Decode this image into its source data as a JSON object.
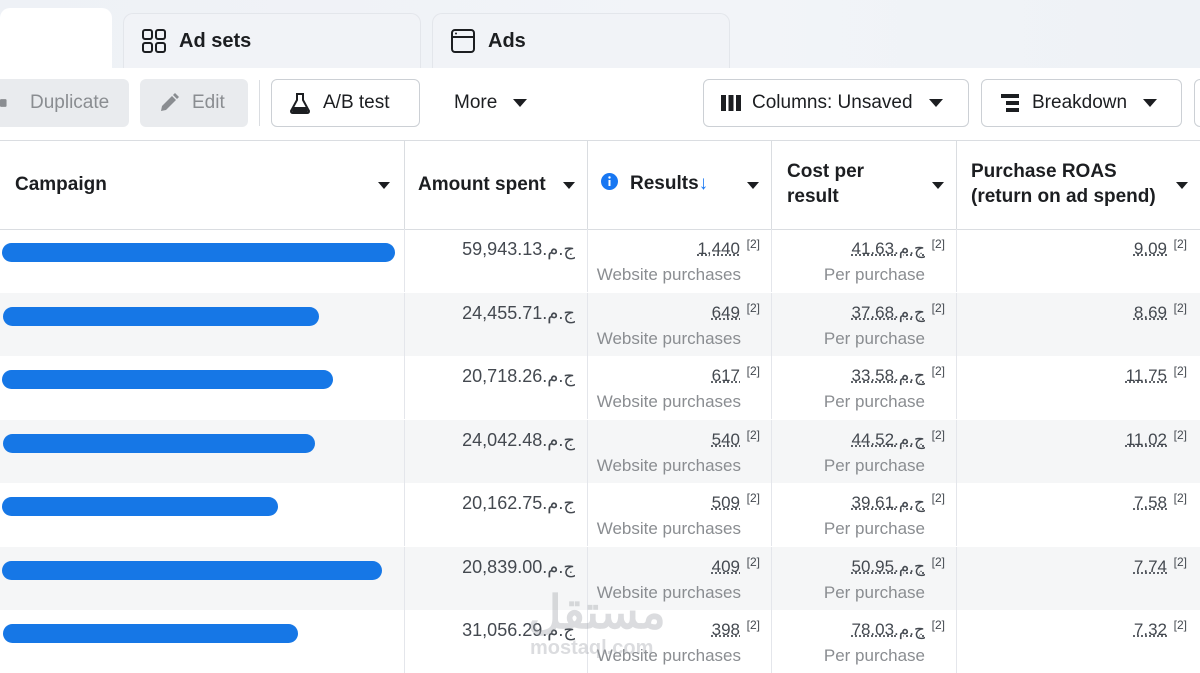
{
  "tabs": [
    {
      "label": ""
    },
    {
      "label": "Ad sets",
      "icon": "grid-icon"
    },
    {
      "label": "Ads",
      "icon": "window-icon"
    }
  ],
  "toolbar": {
    "duplicate": "Duplicate",
    "edit": "Edit",
    "ab_test": "A/B test",
    "more": "More",
    "columns": "Columns: Unsaved",
    "breakdown": "Breakdown"
  },
  "table": {
    "columns": {
      "campaign": "Campaign",
      "amount_spent": "Amount spent",
      "results": "Results",
      "results_sort": "↓",
      "cost_per_result_1": "Cost per",
      "cost_per_result_2": "result",
      "roas_1": "Purchase ROAS",
      "roas_2": "(return on ad spend)"
    },
    "footnote_marker": "[2]",
    "results_sub": "Website purchases",
    "cost_sub": "Per purchase",
    "rows": [
      {
        "amount": "ج.م.59,943.13",
        "results": "1,440",
        "cost": "ج.م.41.63",
        "roas": "9.09"
      },
      {
        "amount": "ج.م.24,455.71",
        "results": "649",
        "cost": "ج.م.37.68",
        "roas": "8.69"
      },
      {
        "amount": "ج.م.20,718.26",
        "results": "617",
        "cost": "ج.م.33.58",
        "roas": "11.75"
      },
      {
        "amount": "ج.م.24,042.48",
        "results": "540",
        "cost": "ج.م.44.52",
        "roas": "11.02"
      },
      {
        "amount": "ج.م.20,162.75",
        "results": "509",
        "cost": "ج.م.39.61",
        "roas": "7.58"
      },
      {
        "amount": "ج.م.20,839.00",
        "results": "409",
        "cost": "ج.م.50.95",
        "roas": "7.74"
      },
      {
        "amount": "ج.م.31,056.29",
        "results": "398",
        "cost": "ج.م.78.03",
        "roas": "7.32"
      }
    ]
  },
  "watermark": {
    "arabic": "مستقل",
    "latin": "mostaql.com"
  },
  "colors": {
    "redaction": "#1677e6",
    "info": "#1877f2",
    "sort_arrow": "#1877f2"
  }
}
